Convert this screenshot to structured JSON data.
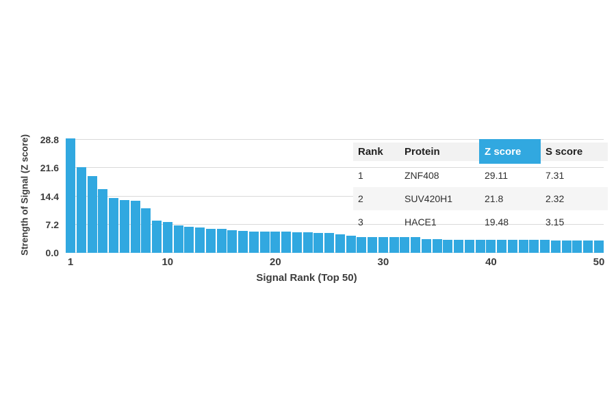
{
  "chart_data": {
    "type": "bar",
    "title": "",
    "xlabel": "Signal Rank (Top 50)",
    "ylabel": "Strength of Signal (Z score)",
    "ylim": [
      0,
      28.8
    ],
    "yticks": [
      {
        "value": 0.0,
        "label": "0.0"
      },
      {
        "value": 7.2,
        "label": "7.2"
      },
      {
        "value": 14.4,
        "label": "14.4"
      },
      {
        "value": 21.6,
        "label": "21.6"
      },
      {
        "value": 28.8,
        "label": "28.8"
      }
    ],
    "xticks": [
      {
        "rank": 1,
        "label": "1"
      },
      {
        "rank": 10,
        "label": "10"
      },
      {
        "rank": 20,
        "label": "20"
      },
      {
        "rank": 30,
        "label": "30"
      },
      {
        "rank": 40,
        "label": "40"
      },
      {
        "rank": 50,
        "label": "50"
      }
    ],
    "x": [
      1,
      2,
      3,
      4,
      5,
      6,
      7,
      8,
      9,
      10,
      11,
      12,
      13,
      14,
      15,
      16,
      17,
      18,
      19,
      20,
      21,
      22,
      23,
      24,
      25,
      26,
      27,
      28,
      29,
      30,
      31,
      32,
      33,
      34,
      35,
      36,
      37,
      38,
      39,
      40,
      41,
      42,
      43,
      44,
      45,
      46,
      47,
      48,
      49,
      50
    ],
    "values": [
      29.11,
      21.8,
      19.48,
      16.2,
      14.0,
      13.5,
      13.2,
      11.4,
      8.2,
      7.9,
      7.0,
      6.6,
      6.5,
      6.1,
      6.1,
      5.8,
      5.6,
      5.5,
      5.5,
      5.4,
      5.4,
      5.2,
      5.2,
      5.1,
      5.1,
      4.8,
      4.3,
      4.1,
      4.1,
      4.0,
      4.0,
      4.0,
      4.0,
      3.5,
      3.5,
      3.4,
      3.4,
      3.4,
      3.4,
      3.4,
      3.4,
      3.3,
      3.3,
      3.3,
      3.3,
      3.2,
      3.2,
      3.2,
      3.2,
      3.1
    ],
    "bar_color": "#31a8e0",
    "grid": true,
    "legend": "none"
  },
  "table": {
    "columns": [
      {
        "key": "rank",
        "label": "Rank"
      },
      {
        "key": "protein",
        "label": "Protein"
      },
      {
        "key": "z_score",
        "label": "Z score"
      },
      {
        "key": "s_score",
        "label": "S score"
      }
    ],
    "highlighted_column": "z_score",
    "highlight_color": "#31a8e0",
    "rows": [
      {
        "rank": "1",
        "protein": "ZNF408",
        "z_score": "29.11",
        "s_score": "7.31"
      },
      {
        "rank": "2",
        "protein": "SUV420H1",
        "z_score": "21.8",
        "s_score": "2.32"
      },
      {
        "rank": "3",
        "protein": "HACE1",
        "z_score": "19.48",
        "s_score": "3.15"
      }
    ]
  }
}
